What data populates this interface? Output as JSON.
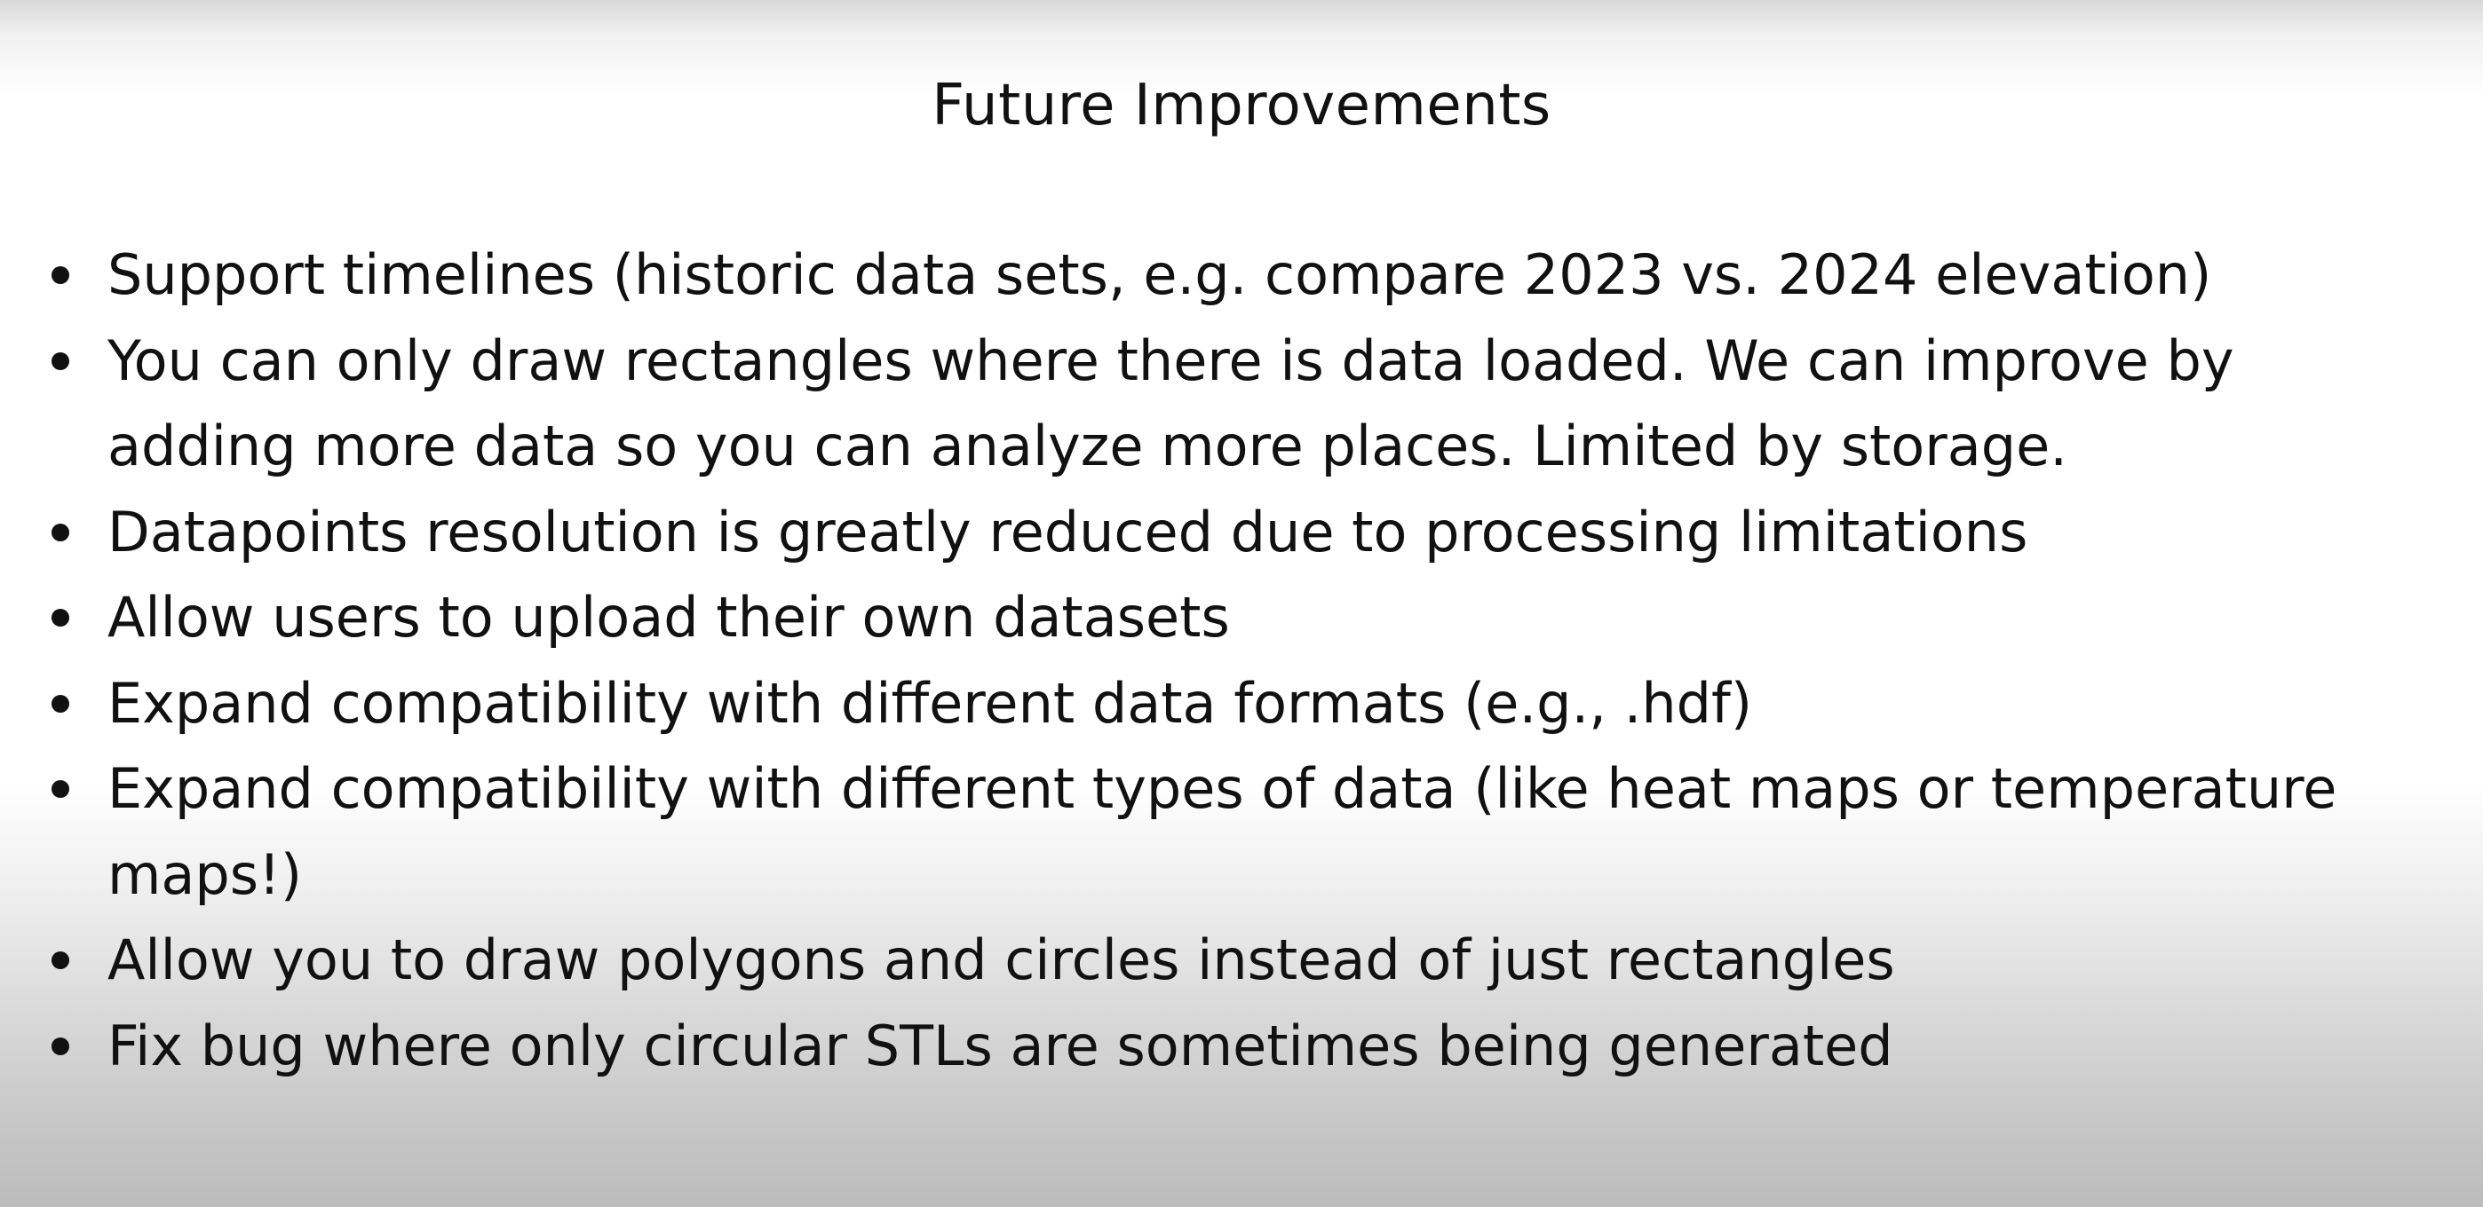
{
  "slide": {
    "title": "Future Improvements",
    "bullets": [
      "Support timelines (historic data sets, e.g. compare 2023 vs. 2024 elevation)",
      "You can only draw rectangles where there is data loaded. We can improve by adding more data so you can analyze more places. Limited by storage.",
      "Datapoints resolution is greatly reduced due to processing limitations",
      "Allow users to upload their own datasets",
      "Expand compatibility with different data formats (e.g., .hdf)",
      "Expand compatibility with different types of data (like heat maps or temperature maps!)",
      "Allow you to draw polygons and circles instead of just rectangles",
      "Fix bug where only circular STLs are sometimes being generated"
    ]
  }
}
